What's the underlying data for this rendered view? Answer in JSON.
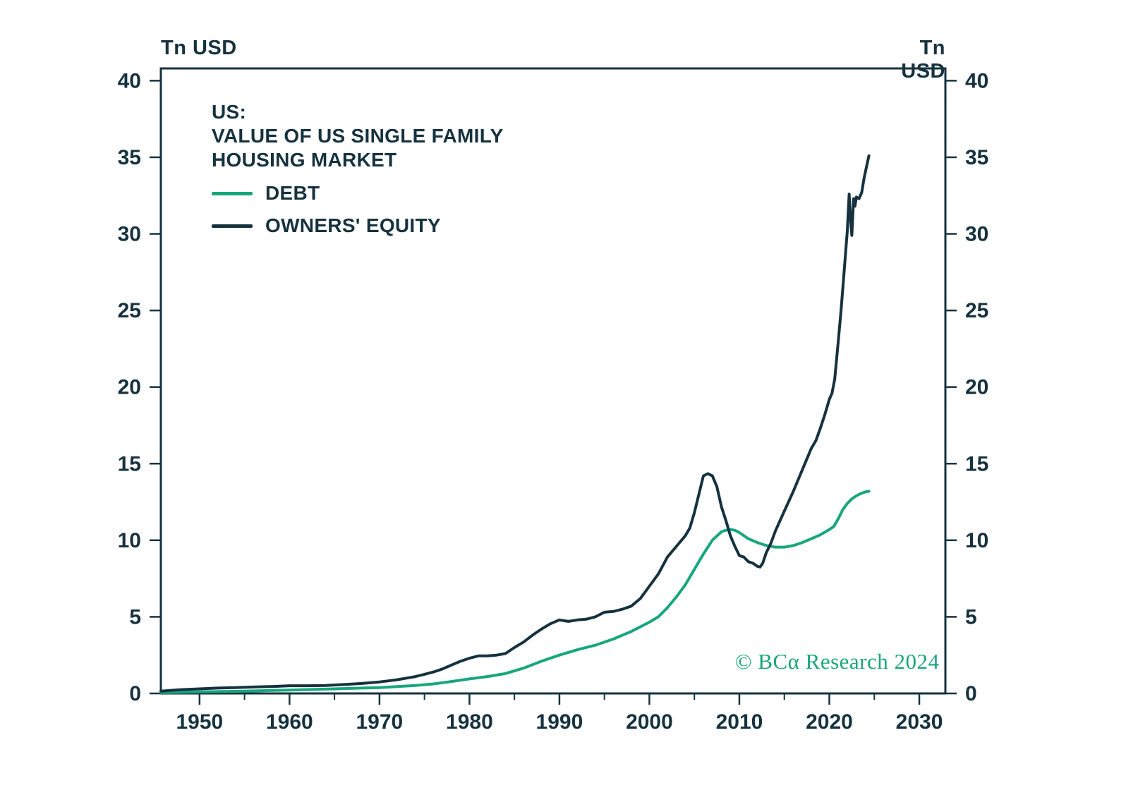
{
  "units": {
    "left": "Tn USD",
    "right": "Tn USD"
  },
  "title_lines": [
    "US:",
    "VALUE OF US SINGLE FAMILY",
    "HOUSING MARKET"
  ],
  "copyright": "© BCα Research 2024",
  "colors": {
    "text": "#16323f",
    "accent_teal": "#18a67e",
    "accent_navy": "#16323f"
  },
  "chart_data": {
    "type": "line",
    "title": "US: VALUE OF US SINGLE FAMILY HOUSING MARKET",
    "xlabel": "",
    "ylabel": "Tn USD",
    "x_min": 1945.7,
    "x_max": 2032.9,
    "y_min": 0,
    "y_max": 40.8,
    "x_ticks": [
      1950,
      1960,
      1970,
      1980,
      1990,
      2000,
      2010,
      2020,
      2030
    ],
    "x_minor_ticks": [
      1955,
      1965,
      1975,
      1985,
      1995,
      2005,
      2015,
      2025
    ],
    "y_ticks": [
      0,
      5,
      10,
      15,
      20,
      25,
      30,
      35,
      40
    ],
    "grid": false,
    "legend_position": "top-left",
    "series": [
      {
        "name": "DEBT",
        "color": "#18a67e",
        "points": [
          [
            1945.7,
            0.05
          ],
          [
            1950,
            0.1
          ],
          [
            1955,
            0.15
          ],
          [
            1960,
            0.22
          ],
          [
            1965,
            0.3
          ],
          [
            1970,
            0.38
          ],
          [
            1972,
            0.45
          ],
          [
            1974,
            0.52
          ],
          [
            1976,
            0.62
          ],
          [
            1978,
            0.78
          ],
          [
            1980,
            0.95
          ],
          [
            1982,
            1.1
          ],
          [
            1984,
            1.3
          ],
          [
            1986,
            1.65
          ],
          [
            1988,
            2.1
          ],
          [
            1990,
            2.5
          ],
          [
            1992,
            2.85
          ],
          [
            1994,
            3.15
          ],
          [
            1996,
            3.55
          ],
          [
            1998,
            4.05
          ],
          [
            2000,
            4.65
          ],
          [
            2001,
            5.0
          ],
          [
            2002,
            5.6
          ],
          [
            2003,
            6.3
          ],
          [
            2004,
            7.1
          ],
          [
            2005,
            8.1
          ],
          [
            2006,
            9.1
          ],
          [
            2007,
            10.0
          ],
          [
            2008,
            10.55
          ],
          [
            2008.5,
            10.65
          ],
          [
            2009,
            10.7
          ],
          [
            2009.5,
            10.65
          ],
          [
            2010,
            10.5
          ],
          [
            2011,
            10.1
          ],
          [
            2012,
            9.85
          ],
          [
            2013,
            9.65
          ],
          [
            2014,
            9.55
          ],
          [
            2015,
            9.55
          ],
          [
            2016,
            9.65
          ],
          [
            2017,
            9.85
          ],
          [
            2018,
            10.1
          ],
          [
            2019,
            10.35
          ],
          [
            2020,
            10.7
          ],
          [
            2020.5,
            10.9
          ],
          [
            2021,
            11.4
          ],
          [
            2021.5,
            12.0
          ],
          [
            2022,
            12.4
          ],
          [
            2022.5,
            12.7
          ],
          [
            2023,
            12.9
          ],
          [
            2023.5,
            13.05
          ],
          [
            2024,
            13.15
          ],
          [
            2024.4,
            13.2
          ]
        ]
      },
      {
        "name": "OWNERS' EQUITY",
        "color": "#16323f",
        "points": [
          [
            1945.7,
            0.15
          ],
          [
            1948,
            0.25
          ],
          [
            1950,
            0.3
          ],
          [
            1952,
            0.35
          ],
          [
            1954,
            0.38
          ],
          [
            1956,
            0.42
          ],
          [
            1958,
            0.45
          ],
          [
            1960,
            0.5
          ],
          [
            1962,
            0.5
          ],
          [
            1964,
            0.52
          ],
          [
            1966,
            0.58
          ],
          [
            1968,
            0.65
          ],
          [
            1970,
            0.75
          ],
          [
            1971,
            0.82
          ],
          [
            1972,
            0.9
          ],
          [
            1973,
            1.0
          ],
          [
            1974,
            1.1
          ],
          [
            1975,
            1.25
          ],
          [
            1976,
            1.4
          ],
          [
            1977,
            1.6
          ],
          [
            1978,
            1.85
          ],
          [
            1979,
            2.1
          ],
          [
            1980,
            2.3
          ],
          [
            1981,
            2.45
          ],
          [
            1982,
            2.45
          ],
          [
            1983,
            2.5
          ],
          [
            1984,
            2.6
          ],
          [
            1985,
            3.0
          ],
          [
            1986,
            3.35
          ],
          [
            1987,
            3.8
          ],
          [
            1988,
            4.2
          ],
          [
            1989,
            4.55
          ],
          [
            1990,
            4.8
          ],
          [
            1990.5,
            4.75
          ],
          [
            1991,
            4.7
          ],
          [
            1992,
            4.8
          ],
          [
            1993,
            4.85
          ],
          [
            1994,
            5.0
          ],
          [
            1995,
            5.3
          ],
          [
            1996,
            5.35
          ],
          [
            1997,
            5.5
          ],
          [
            1998,
            5.7
          ],
          [
            1999,
            6.2
          ],
          [
            2000,
            7.0
          ],
          [
            2001,
            7.8
          ],
          [
            2002,
            8.9
          ],
          [
            2003,
            9.6
          ],
          [
            2004,
            10.3
          ],
          [
            2004.5,
            10.8
          ],
          [
            2005,
            11.8
          ],
          [
            2005.5,
            13.0
          ],
          [
            2006,
            14.2
          ],
          [
            2006.5,
            14.35
          ],
          [
            2007,
            14.2
          ],
          [
            2007.5,
            13.5
          ],
          [
            2008,
            12.2
          ],
          [
            2008.5,
            11.3
          ],
          [
            2009,
            10.3
          ],
          [
            2009.5,
            9.6
          ],
          [
            2010,
            9.0
          ],
          [
            2010.5,
            8.9
          ],
          [
            2011,
            8.6
          ],
          [
            2011.5,
            8.5
          ],
          [
            2012,
            8.3
          ],
          [
            2012.3,
            8.25
          ],
          [
            2012.6,
            8.5
          ],
          [
            2013,
            9.2
          ],
          [
            2013.5,
            9.8
          ],
          [
            2014,
            10.6
          ],
          [
            2015,
            11.9
          ],
          [
            2016,
            13.2
          ],
          [
            2017,
            14.6
          ],
          [
            2018,
            16.0
          ],
          [
            2018.5,
            16.5
          ],
          [
            2019,
            17.3
          ],
          [
            2019.5,
            18.2
          ],
          [
            2020,
            19.2
          ],
          [
            2020.3,
            19.6
          ],
          [
            2020.6,
            20.5
          ],
          [
            2021,
            23.0
          ],
          [
            2021.3,
            25.0
          ],
          [
            2021.6,
            27.2
          ],
          [
            2022,
            30.2
          ],
          [
            2022.2,
            32.6
          ],
          [
            2022.35,
            31.0
          ],
          [
            2022.5,
            29.9
          ],
          [
            2022.7,
            32.3
          ],
          [
            2022.85,
            31.8
          ],
          [
            2023,
            32.4
          ],
          [
            2023.3,
            32.3
          ],
          [
            2023.6,
            32.7
          ],
          [
            2023.85,
            33.6
          ],
          [
            2024.1,
            34.3
          ],
          [
            2024.4,
            35.1
          ]
        ]
      }
    ]
  }
}
